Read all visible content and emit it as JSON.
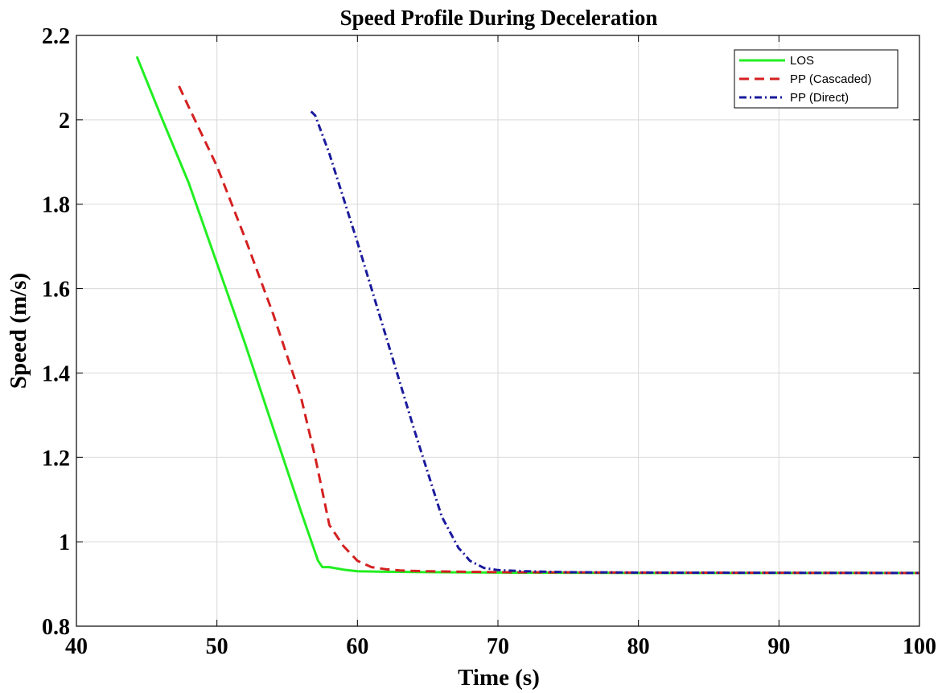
{
  "chart_data": {
    "type": "line",
    "title": "Speed Profile During Deceleration",
    "xlabel": "Time (s)",
    "ylabel": "Speed (m/s)",
    "xlim": [
      40,
      100
    ],
    "ylim": [
      0.8,
      2.2
    ],
    "xticks": [
      40,
      50,
      60,
      70,
      80,
      90,
      100
    ],
    "yticks": [
      0.8,
      1,
      1.2,
      1.4,
      1.6,
      1.8,
      2,
      2.2
    ],
    "xtick_labels": [
      "40",
      "50",
      "60",
      "70",
      "80",
      "90",
      "100"
    ],
    "ytick_labels": [
      "0.8",
      "1",
      "1.2",
      "1.4",
      "1.6",
      "1.8",
      "2",
      "2.2"
    ],
    "grid": true,
    "legend_position": "top-right",
    "series": [
      {
        "name": "LOS",
        "color": "#22ee22",
        "dash": "solid",
        "x": [
          44.3,
          46,
          48,
          50,
          52,
          54,
          56,
          57.2,
          57.5,
          58,
          59,
          60,
          62,
          65,
          70,
          80,
          100
        ],
        "y": [
          2.15,
          2.01,
          1.85,
          1.66,
          1.47,
          1.27,
          1.07,
          0.955,
          0.94,
          0.94,
          0.934,
          0.93,
          0.929,
          0.928,
          0.927,
          0.926,
          0.926
        ]
      },
      {
        "name": "PP (Cascaded)",
        "color": "#d42020",
        "dash": "dashed",
        "x": [
          47.3,
          48,
          50,
          52,
          54,
          56,
          57,
          57.5,
          58,
          59,
          60,
          61,
          62,
          63,
          65,
          70,
          80,
          100
        ],
        "y": [
          2.08,
          2.03,
          1.89,
          1.72,
          1.54,
          1.34,
          1.2,
          1.12,
          1.04,
          0.99,
          0.955,
          0.94,
          0.935,
          0.932,
          0.93,
          0.928,
          0.927,
          0.926
        ]
      },
      {
        "name": "PP (Direct)",
        "color": "#1a1a9c",
        "dash": "dashdot",
        "x": [
          56.7,
          57,
          58,
          60,
          62,
          64,
          66,
          67.2,
          67.5,
          68,
          69,
          70,
          72,
          75,
          80,
          100
        ],
        "y": [
          2.02,
          2.01,
          1.92,
          1.71,
          1.49,
          1.27,
          1.06,
          0.985,
          0.975,
          0.955,
          0.938,
          0.933,
          0.93,
          0.928,
          0.927,
          0.926
        ]
      }
    ]
  }
}
